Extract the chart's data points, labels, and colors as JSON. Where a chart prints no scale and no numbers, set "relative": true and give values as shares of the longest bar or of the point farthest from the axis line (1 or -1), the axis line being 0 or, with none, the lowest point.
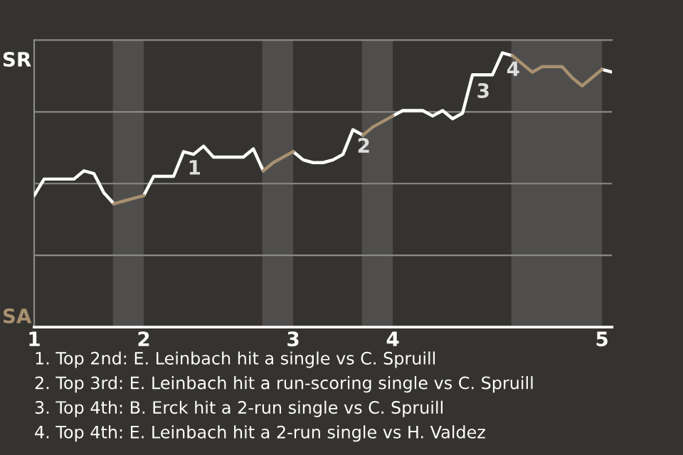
{
  "chart_data": {
    "type": "line",
    "relative": true,
    "grid": "y",
    "categories": [
      "1",
      null,
      null,
      null,
      null,
      null,
      null,
      null,
      null,
      null,
      null,
      "2",
      null,
      null,
      null,
      null,
      null,
      null,
      null,
      null,
      null,
      null,
      null,
      null,
      null,
      null,
      "3",
      null,
      null,
      null,
      null,
      null,
      null,
      null,
      null,
      null,
      "4",
      null,
      null,
      null,
      null,
      null,
      null,
      null,
      null,
      null,
      null,
      null,
      null,
      null,
      null,
      null,
      null,
      null,
      null,
      null,
      null,
      "5",
      null
    ],
    "series": [
      {
        "name": "SR",
        "color": "#ffffff",
        "values": [
          0.48,
          0.54,
          0.54,
          0.54,
          0.54,
          0.57,
          0.56,
          0.49,
          0.45,
          null,
          null,
          0.48,
          0.55,
          0.55,
          0.55,
          0.64,
          0.63,
          0.66,
          0.62,
          0.62,
          0.62,
          0.62,
          0.65,
          0.57,
          null,
          null,
          0.64,
          0.61,
          0.6,
          0.6,
          0.61,
          0.63,
          0.72,
          0.7,
          null,
          null,
          0.77,
          0.79,
          0.79,
          0.79,
          0.77,
          0.79,
          0.76,
          0.78,
          0.92,
          0.92,
          0.92,
          1.0,
          0.99,
          null,
          null,
          null,
          null,
          null,
          null,
          null,
          null,
          0.94,
          0.93
        ]
      },
      {
        "name": "SA",
        "color": "#a89070",
        "values": [
          null,
          null,
          null,
          null,
          null,
          null,
          null,
          null,
          0.45,
          0.46,
          0.47,
          0.48,
          null,
          null,
          null,
          null,
          null,
          null,
          null,
          null,
          null,
          null,
          null,
          0.57,
          0.6,
          0.62,
          0.64,
          null,
          null,
          null,
          null,
          null,
          null,
          0.7,
          0.73,
          0.75,
          0.77,
          null,
          null,
          null,
          null,
          null,
          null,
          null,
          null,
          null,
          null,
          null,
          0.99,
          0.96,
          0.93,
          0.95,
          0.95,
          0.95,
          0.91,
          0.88,
          0.91,
          0.94,
          null
        ]
      }
    ],
    "annotations": [
      {
        "text": "1",
        "y": 0.64
      },
      {
        "text": "2",
        "y": 0.72
      },
      {
        "text": "3",
        "y": 0.92
      },
      {
        "text": "4",
        "y": 1.0
      },
      "1. Top 2nd: E. Leinbach hit a single vs C. Spruill",
      "2. Top 3rd: E. Leinbach hit a run-scoring single vs C. Spruill",
      "3. Top 4th: B. Erck hit a 2-run single vs C. Spruill",
      "4. Top 4th: E. Leinbach hit a 2-run single vs H. Valdez"
    ]
  }
}
